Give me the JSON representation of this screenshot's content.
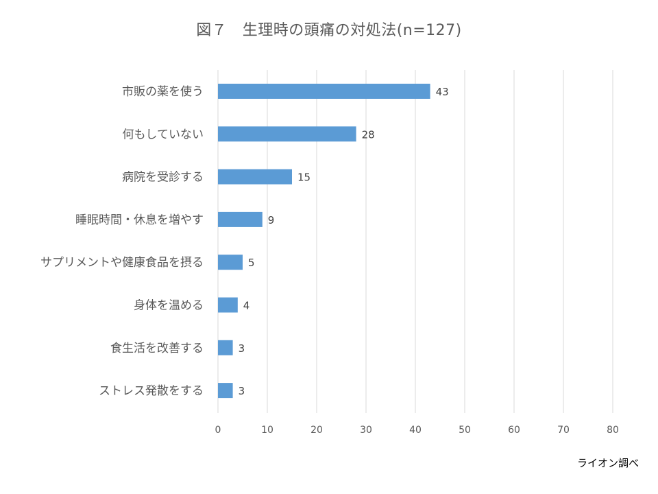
{
  "chart_data": {
    "type": "bar",
    "orientation": "horizontal",
    "title": "図７　生理時の頭痛の対処法(n=127)",
    "categories": [
      "市販の薬を使う",
      "何もしていない",
      "病院を受診する",
      "睡眠時間・休息を増やす",
      "サプリメントや健康食品を摂る",
      "身体を温める",
      "食生活を改善する",
      "ストレス発散をする"
    ],
    "values": [
      43,
      28,
      15,
      9,
      5,
      4,
      3,
      3
    ],
    "xlim": [
      0,
      80
    ],
    "xticks": [
      "0",
      "10",
      "20",
      "30",
      "40",
      "50",
      "60",
      "70",
      "80"
    ],
    "grid": true,
    "bar_color": "#5b9bd5",
    "grid_color": "#d9d9d9"
  },
  "source_note": "ライオン調べ"
}
